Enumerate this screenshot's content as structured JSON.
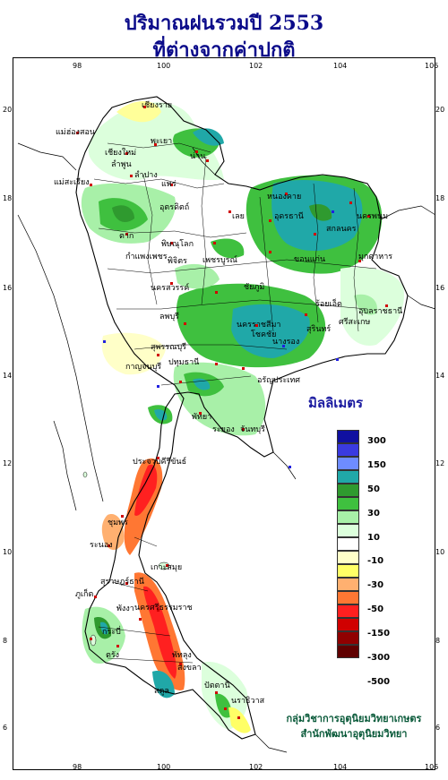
{
  "title_line1": "ปริมาณฝนรวมปี 2553",
  "title_line2": "ที่ต่างจากค่าปกติ",
  "x_ticks": [
    "98",
    "100",
    "102",
    "104",
    "106"
  ],
  "y_ticks": [
    "20",
    "18",
    "16",
    "14",
    "12",
    "10",
    "8",
    "6"
  ],
  "legend": {
    "title": "มิลลิเมตร",
    "labels": [
      "300",
      "150",
      "50",
      "30",
      "10",
      "-10",
      "-30",
      "-50",
      "-150",
      "-300",
      "-500"
    ],
    "colors": [
      "#1010a0",
      "#3a3ae0",
      "#6e8cff",
      "#20a8a8",
      "#2f9a2f",
      "#3fc03f",
      "#a8f0a8",
      "#dcffdc",
      "#ffffff",
      "#ffffc8",
      "#ffff66",
      "#ffb070",
      "#ff7733",
      "#ff2020",
      "#d00000",
      "#900000",
      "#600000"
    ]
  },
  "credits": {
    "line1": "กลุ่มวิชาการอุตุนิยมวิทยาเกษตร",
    "line2": "สำนักพัฒนาอุตุนิยมวิทยา"
  },
  "provinces": [
    {
      "name": "เชียงราย"
    },
    {
      "name": "แม่ฮ่องสอน"
    },
    {
      "name": "พะเยา"
    },
    {
      "name": "เชียงใหม่"
    },
    {
      "name": "ลำพูน"
    },
    {
      "name": "น่าน"
    },
    {
      "name": "ลำปาง"
    },
    {
      "name": "แพร่"
    },
    {
      "name": "แม่สะเรียง"
    },
    {
      "name": "หนองคาย"
    },
    {
      "name": "อุตรดิตถ์"
    },
    {
      "name": "อุดรธานี"
    },
    {
      "name": "นครพนม"
    },
    {
      "name": "สกลนคร"
    },
    {
      "name": "ตาก"
    },
    {
      "name": "เลย"
    },
    {
      "name": "พิษณุโลก"
    },
    {
      "name": "มุกดาหาร"
    },
    {
      "name": "กำแพงเพชร"
    },
    {
      "name": "พิจิตร"
    },
    {
      "name": "เพชรบูรณ์"
    },
    {
      "name": "ขอนแก่น"
    },
    {
      "name": "นครสวรรค์"
    },
    {
      "name": "ชัยภูมิ"
    },
    {
      "name": "ร้อยเอ็ด"
    },
    {
      "name": "อุบลราชธานี"
    },
    {
      "name": "ลพบุรี"
    },
    {
      "name": "นครราชสีมา"
    },
    {
      "name": "สุรินทร์"
    },
    {
      "name": "ศรีสะเกษ"
    },
    {
      "name": "สุพรรณบุรี"
    },
    {
      "name": "กาญจนบุรี"
    },
    {
      "name": "ปทุมธานี"
    },
    {
      "name": "อรัญประเทศ"
    },
    {
      "name": "โชคชัย"
    },
    {
      "name": "นางรอง"
    },
    {
      "name": "พัทยา"
    },
    {
      "name": "ระยอง"
    },
    {
      "name": "จันทบุรี"
    },
    {
      "name": "ประจวบคีรีขันธ์"
    },
    {
      "name": "ชุมพร"
    },
    {
      "name": "ระนอง"
    },
    {
      "name": "สุราษฎร์ธานี"
    },
    {
      "name": "เกาะสมุย"
    },
    {
      "name": "ภูเก็ต"
    },
    {
      "name": "พังงา"
    },
    {
      "name": "นครศรีธรรมราช"
    },
    {
      "name": "กระบี่"
    },
    {
      "name": "ตรัง"
    },
    {
      "name": "พัทลุง"
    },
    {
      "name": "สงขลา"
    },
    {
      "name": "ปัตตานี"
    },
    {
      "name": "นราธิวาส"
    },
    {
      "name": "สตูล"
    }
  ]
}
